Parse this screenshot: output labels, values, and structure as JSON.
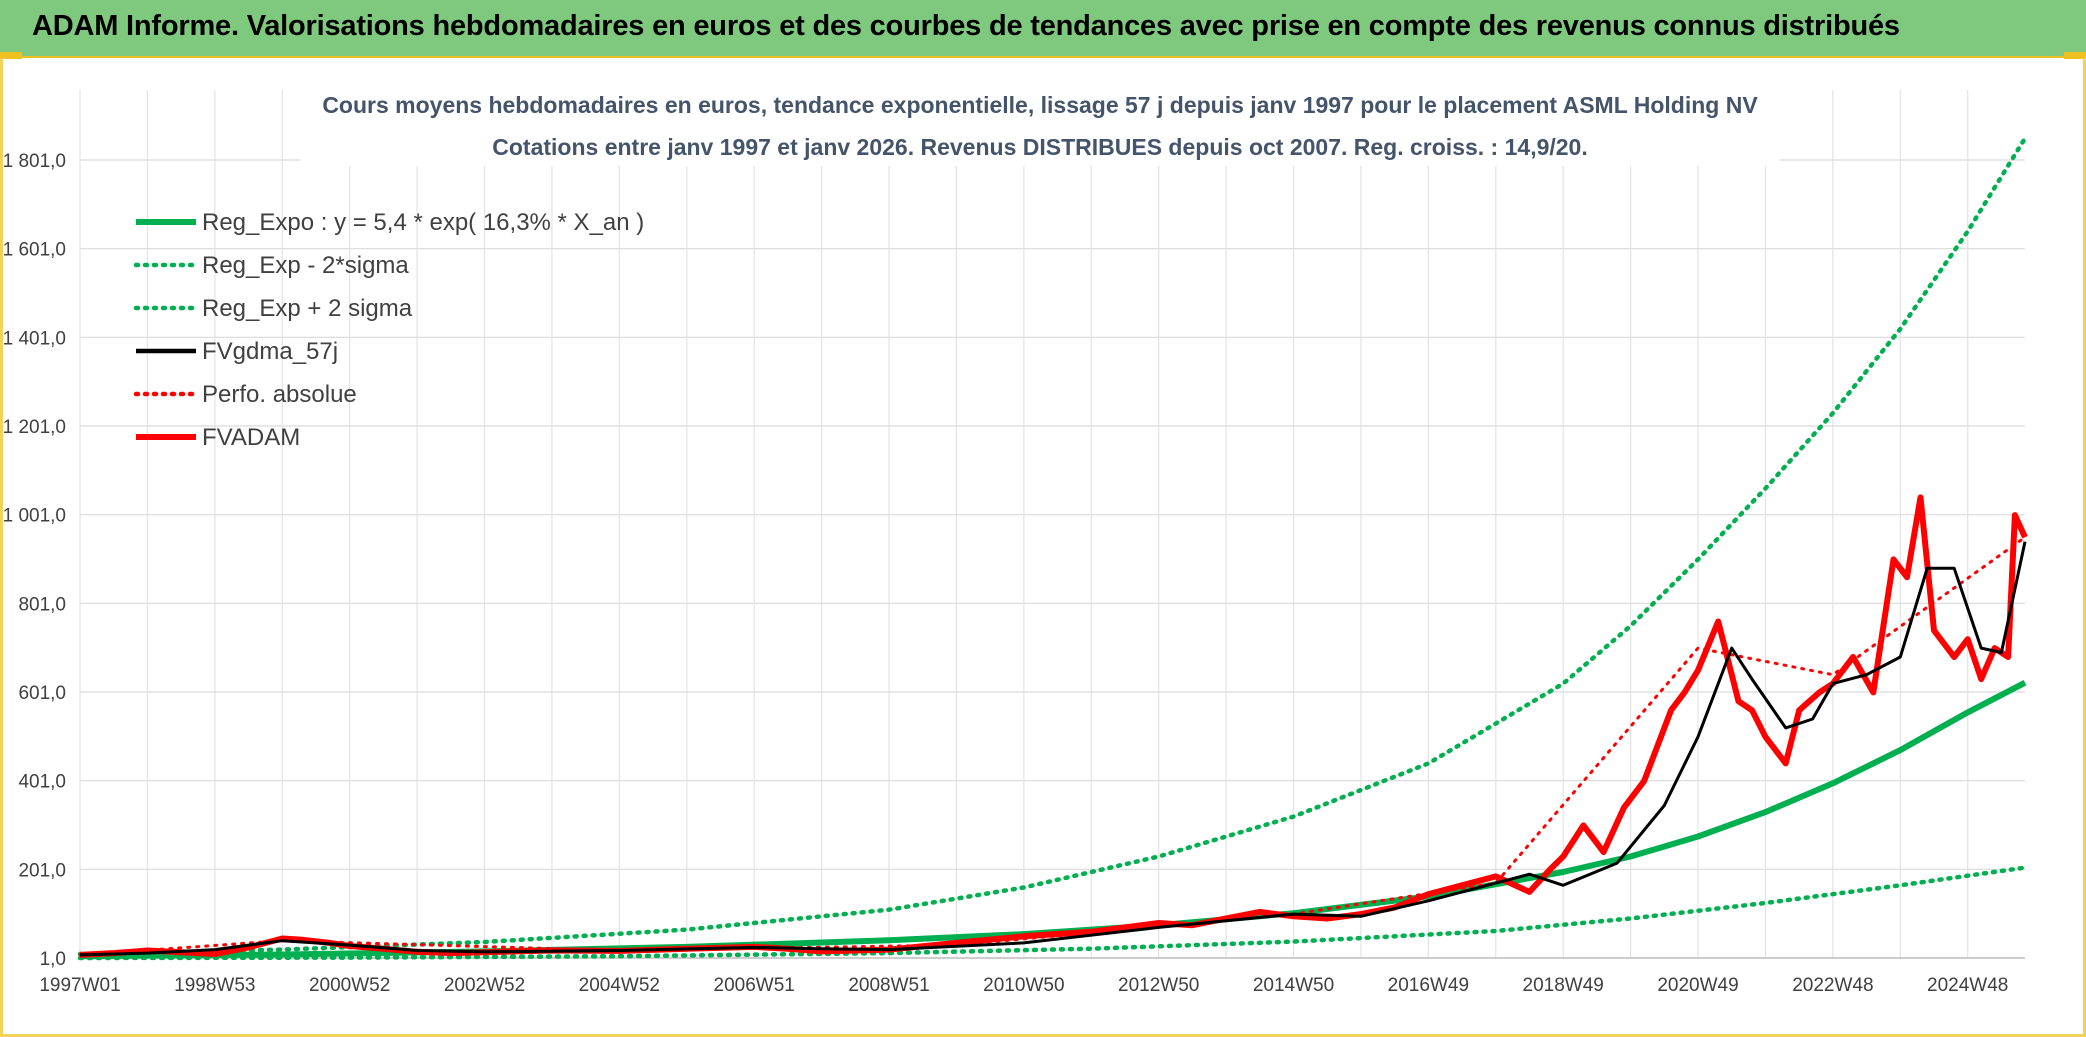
{
  "banner": {
    "title": "ADAM Informe. Valorisations hebdomadaires en euros et des courbes de tendances avec prise en compte des revenus connus distribués",
    "color": "#7fc97f"
  },
  "chart_data": {
    "type": "line",
    "title_line1": "Cours moyens hebdomadaires en euros, tendance exponentielle, lissage 57 j depuis janv 1997 pour le placement ASML Holding NV",
    "title_line2": "Cotations entre janv 1997 et janv 2026. Revenus DISTRIBUES depuis oct 2007. Reg. croiss. : 14,9/20.",
    "xlabel": "",
    "ylabel": "",
    "ylim": [
      1,
      1850
    ],
    "xlim": [
      1997.0,
      2025.85
    ],
    "grid": true,
    "legend_position": "top-left",
    "y_ticks": [
      1,
      201,
      401,
      601,
      801,
      1001,
      1201,
      1401,
      1601,
      1801
    ],
    "y_tick_labels": [
      "1,0",
      "201,0",
      "401,0",
      "601,0",
      "801,0",
      "1 001,0",
      "1 201,0",
      "1 401,0",
      "1 601,0",
      "1 801,0"
    ],
    "x_ticks": [
      1997.0,
      1999.0,
      2001.0,
      2003.0,
      2005.0,
      2007.0,
      2009.0,
      2011.0,
      2013.0,
      2015.0,
      2017.0,
      2019.0,
      2021.0,
      2023.0,
      2025.0
    ],
    "x_tick_labels": [
      "1997W01",
      "1998W53",
      "2000W52",
      "2002W52",
      "2004W52",
      "2006W51",
      "2008W51",
      "2010W50",
      "2012W50",
      "2014W50",
      "2016W49",
      "2018W49",
      "2020W49",
      "2022W48",
      "2024W48"
    ],
    "series": [
      {
        "name": "Reg_Expo : y = 5,4 * exp( 16,3% *  X_an )",
        "color": "#00b050",
        "style": "solid-thick",
        "x": [
          1997.0,
          2000.0,
          2003.0,
          2006.0,
          2009.0,
          2011.0,
          2013.0,
          2015.0,
          2017.0,
          2019.0,
          2020.0,
          2021.0,
          2022.0,
          2023.0,
          2024.0,
          2025.0,
          2025.85
        ],
        "y": [
          5,
          9,
          16,
          26,
          41,
          55,
          75,
          102,
          140,
          195,
          230,
          275,
          330,
          395,
          470,
          555,
          622
        ]
      },
      {
        "name": "Reg_Exp - 2*sigma",
        "color": "#00b050",
        "style": "dotted",
        "x": [
          1997.0,
          2001.0,
          2005.0,
          2009.0,
          2012.0,
          2015.0,
          2018.0,
          2020.0,
          2022.0,
          2024.0,
          2025.85
        ],
        "y": [
          1,
          2,
          5,
          12,
          22,
          38,
          62,
          90,
          125,
          165,
          205
        ]
      },
      {
        "name": "Reg_Exp + 2 sigma",
        "color": "#00b050",
        "style": "dotted",
        "x": [
          1997.0,
          2000.0,
          2003.0,
          2006.0,
          2009.0,
          2011.0,
          2013.0,
          2015.0,
          2017.0,
          2019.0,
          2020.0,
          2021.0,
          2022.0,
          2023.0,
          2024.0,
          2025.0,
          2025.85
        ],
        "y": [
          10,
          20,
          37,
          65,
          110,
          160,
          230,
          320,
          440,
          620,
          750,
          900,
          1060,
          1230,
          1420,
          1640,
          1850
        ]
      },
      {
        "name": "FVgdma_57j",
        "color": "#000000",
        "style": "solid",
        "x": [
          1997.0,
          1998.0,
          1999.0,
          2000.0,
          2001.0,
          2002.0,
          2003.0,
          2005.0,
          2007.0,
          2008.0,
          2009.0,
          2011.0,
          2013.0,
          2014.0,
          2015.0,
          2016.0,
          2017.0,
          2018.0,
          2018.5,
          2019.0,
          2019.8,
          2020.5,
          2021.0,
          2021.5,
          2021.8,
          2022.3,
          2022.7,
          2023.0,
          2023.5,
          2024.0,
          2024.4,
          2024.8,
          2025.2,
          2025.5,
          2025.85
        ],
        "y": [
          8,
          12,
          20,
          40,
          30,
          18,
          15,
          18,
          25,
          22,
          20,
          35,
          70,
          85,
          100,
          95,
          130,
          170,
          190,
          165,
          215,
          345,
          500,
          700,
          630,
          520,
          540,
          620,
          640,
          680,
          880,
          880,
          700,
          690,
          940
        ]
      },
      {
        "name": "Perfo. absolue",
        "color": "#ff0000",
        "style": "dotted",
        "x": [
          1997.0,
          2000.0,
          2005.0,
          2010.0,
          2015.0,
          2018.0,
          2021.0,
          2023.0,
          2025.85
        ],
        "y": [
          8,
          40,
          18,
          30,
          100,
          170,
          700,
          640,
          950
        ]
      },
      {
        "name": "FVADAM",
        "color": "#ff0000",
        "style": "solid-thick",
        "x": [
          1997.0,
          1997.5,
          1998.0,
          1998.5,
          1999.0,
          1999.5,
          2000.0,
          2000.3,
          2000.7,
          2001.0,
          2001.5,
          2002.0,
          2002.5,
          2003.0,
          2004.0,
          2005.0,
          2006.0,
          2007.0,
          2007.5,
          2008.0,
          2009.0,
          2010.0,
          2011.0,
          2012.0,
          2013.0,
          2013.5,
          2014.0,
          2014.5,
          2015.0,
          2015.5,
          2016.0,
          2016.5,
          2017.0,
          2017.5,
          2018.0,
          2018.5,
          2018.8,
          2019.0,
          2019.3,
          2019.6,
          2019.9,
          2020.2,
          2020.6,
          2020.8,
          2021.0,
          2021.3,
          2021.6,
          2021.8,
          2022.0,
          2022.3,
          2022.5,
          2022.8,
          2023.0,
          2023.3,
          2023.6,
          2023.9,
          2024.1,
          2024.3,
          2024.5,
          2024.8,
          2025.0,
          2025.2,
          2025.4,
          2025.6,
          2025.7,
          2025.85
        ],
        "y": [
          8,
          12,
          18,
          14,
          10,
          25,
          45,
          42,
          35,
          28,
          22,
          15,
          12,
          14,
          18,
          17,
          22,
          26,
          22,
          16,
          20,
          35,
          50,
          60,
          80,
          75,
          90,
          105,
          95,
          90,
          100,
          115,
          145,
          165,
          185,
          150,
          200,
          230,
          300,
          240,
          340,
          400,
          560,
          600,
          650,
          760,
          580,
          560,
          500,
          440,
          560,
          600,
          620,
          680,
          600,
          900,
          860,
          1040,
          740,
          680,
          720,
          630,
          700,
          680,
          1000,
          950
        ]
      }
    ]
  }
}
